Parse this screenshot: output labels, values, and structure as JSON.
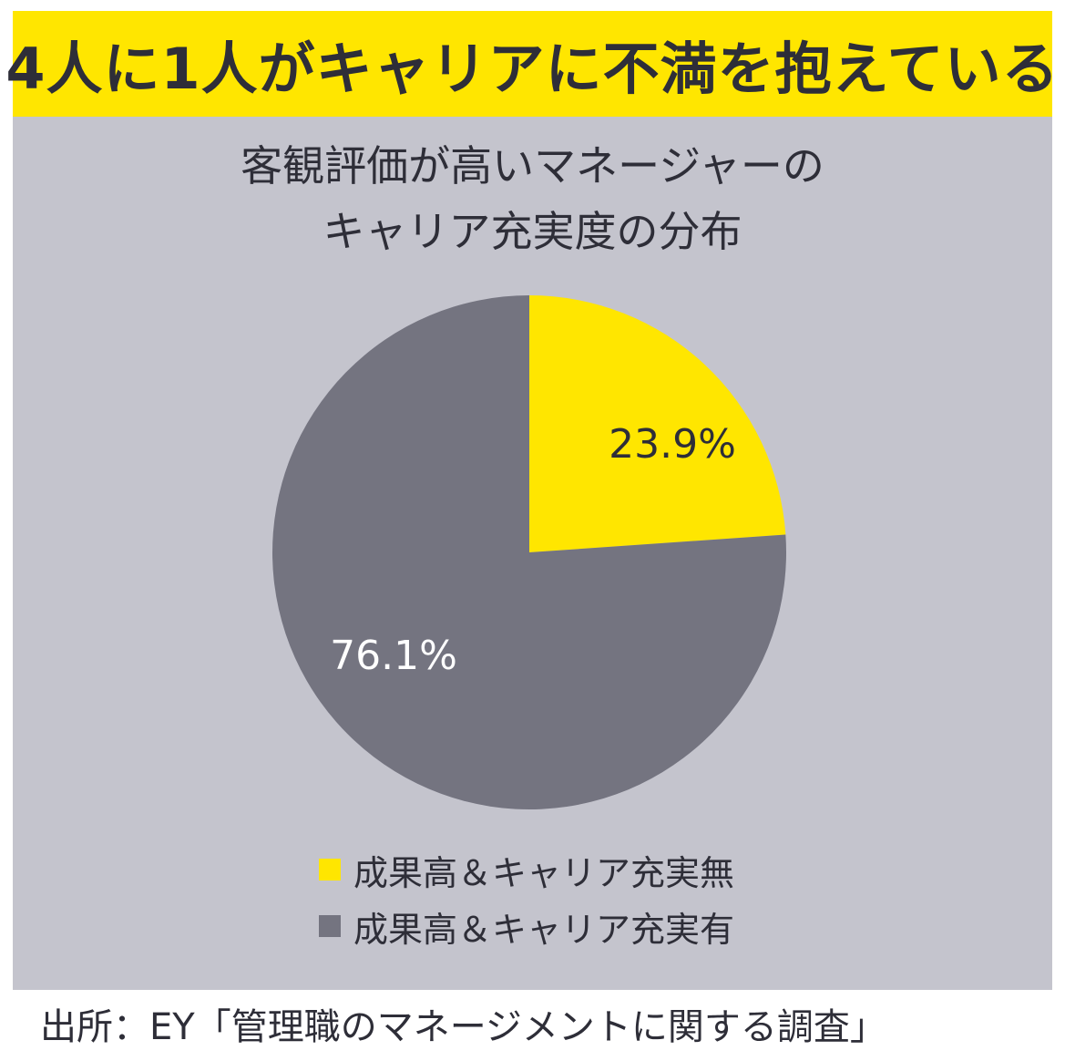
{
  "banner": {
    "text": "4人に1人がキャリアに不満を抱えている",
    "background": "#ffe600"
  },
  "chart_data": {
    "type": "pie",
    "title_lines": [
      "客観評価が高いマネージャーの",
      "キャリア充実度の分布"
    ],
    "slices": [
      {
        "label": "成果高＆キャリア充実無",
        "value": 23.9,
        "display": "23.9%",
        "color": "#ffe600",
        "label_color": "#2e2e38"
      },
      {
        "label": "成果高＆キャリア充実有",
        "value": 76.1,
        "display": "76.1%",
        "color": "#747480",
        "label_color": "#ffffff"
      }
    ],
    "start_angle": "12 o'clock",
    "direction": "clockwise",
    "legend_position": "bottom"
  },
  "colors": {
    "panel_background": "#c4c4cd",
    "text_dark": "#2e2e38"
  },
  "source": {
    "text": "出所：EY「管理職のマネージメントに関する調査」"
  }
}
